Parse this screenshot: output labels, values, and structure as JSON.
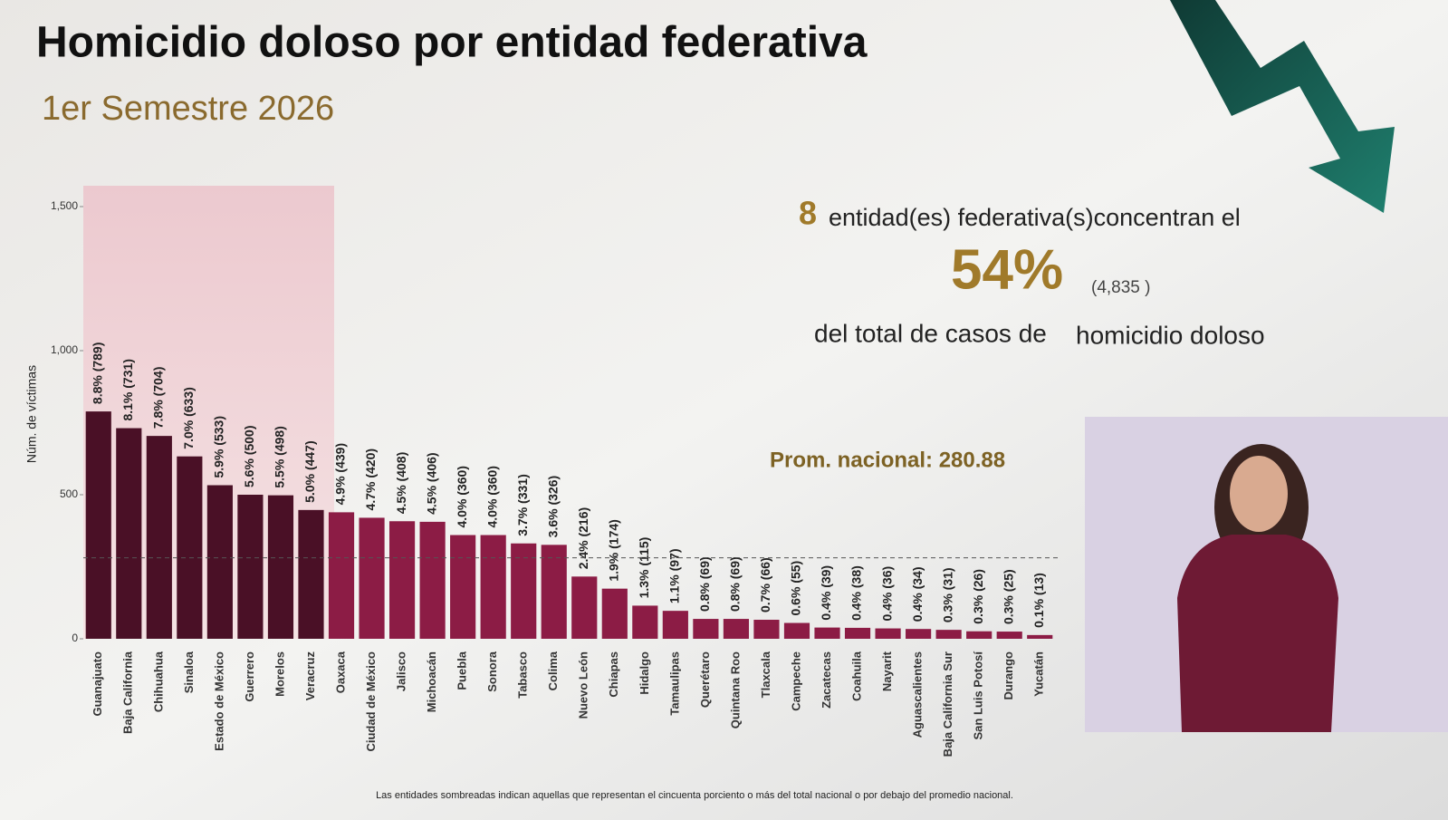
{
  "chart_data": {
    "type": "bar",
    "title": "Homicidio doloso por entidad federativa",
    "subtitle": "1er Semestre 2026",
    "y_label": "Núm. de víctimas",
    "categories": [
      "Guanajuato",
      "Baja California",
      "Chihuahua",
      "Sinaloa",
      "Estado de México",
      "Guerrero",
      "Morelos",
      "Veracruz",
      "Oaxaca",
      "Ciudad de México",
      "Jalisco",
      "Michoacán",
      "Puebla",
      "Sonora",
      "Tabasco",
      "Colima",
      "Nuevo León",
      "Chiapas",
      "Hidalgo",
      "Tamaulipas",
      "Querétaro",
      "Quintana Roo",
      "Tlaxcala",
      "Campeche",
      "Zacatecas",
      "Coahuila",
      "Nayarit",
      "Aguascalientes",
      "Baja California Sur",
      "San Luis Potosí",
      "Durango",
      "Yucatán"
    ],
    "values": [
      789,
      731,
      704,
      633,
      533,
      500,
      498,
      447,
      439,
      420,
      408,
      406,
      360,
      360,
      331,
      326,
      216,
      174,
      115,
      97,
      69,
      69,
      66,
      55,
      39,
      38,
      36,
      34,
      31,
      26,
      25,
      13
    ],
    "value_labels": [
      "8.8% (789)",
      "8.1% (731)",
      "7.8% (704)",
      "7.0% (633)",
      "5.9% (533)",
      "5.6% (500)",
      "5.5% (498)",
      "5.0% (447)",
      "4.9% (439)",
      "4.7% (420)",
      "4.5% (408)",
      "4.5% (406)",
      "4.0% (360)",
      "4.0% (360)",
      "3.7% (331)",
      "3.6% (326)",
      "2.4% (216)",
      "1.9% (174)",
      "1.3% (115)",
      "1.1% (97)",
      "0.8% (69)",
      "0.8% (69)",
      "0.7% (66)",
      "0.6% (55)",
      "0.4% (39)",
      "0.4% (38)",
      "0.4% (36)",
      "0.4% (34)",
      "0.3% (31)",
      "0.3% (26)",
      "0.3% (25)",
      "0.1% (13)"
    ],
    "colors": [
      "#4a1026",
      "#4a1026",
      "#4a1026",
      "#4a1026",
      "#4a1026",
      "#4a1026",
      "#4a1026",
      "#4a1026",
      "#8c1c45",
      "#8c1c45",
      "#8c1c45",
      "#8c1c45",
      "#8c1c45",
      "#8c1c45",
      "#8c1c45",
      "#8c1c45",
      "#8c1c45",
      "#8c1c45",
      "#8c1c45",
      "#8c1c45",
      "#8c1c45",
      "#8c1c45",
      "#8c1c45",
      "#8c1c45",
      "#8c1c45",
      "#8c1c45",
      "#8c1c45",
      "#8c1c45",
      "#8c1c45",
      "#8c1c45",
      "#8c1c45",
      "#8c1c45"
    ],
    "ylim": [
      0,
      1500
    ],
    "yticks": [
      0,
      500,
      {
        "value": 1000,
        "label": "1,000"
      },
      {
        "value": 1500,
        "label": "1,500"
      }
    ],
    "average": 280.88,
    "average_label": "Prom. nacional: 280.88",
    "callout": {
      "count": "8",
      "text": "entidad(es) federativa(s)concentran el",
      "percent": "54%",
      "total": "(4,835 )",
      "text2": "del total de casos de",
      "text3": "homicidio doloso"
    },
    "note": "Las entidades sombreadas indican aquellas que representan el cincuenta porciento o más del total nacional o por debajo del promedio nacional."
  }
}
